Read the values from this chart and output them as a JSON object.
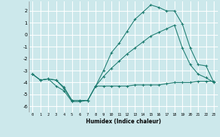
{
  "background_color": "#cce8eb",
  "grid_color": "#ffffff",
  "line_color": "#1a7a6e",
  "x_label": "Humidex (Indice chaleur)",
  "ylim": [
    -6.5,
    2.8
  ],
  "xlim": [
    -0.5,
    23.5
  ],
  "yticks": [
    2,
    1,
    0,
    -1,
    -2,
    -3,
    -4,
    -5,
    -6
  ],
  "xticks": [
    0,
    1,
    2,
    3,
    4,
    5,
    6,
    7,
    8,
    9,
    10,
    11,
    12,
    13,
    14,
    15,
    16,
    17,
    18,
    19,
    20,
    21,
    22,
    23
  ],
  "series": [
    {
      "x": [
        0,
        1,
        2,
        3,
        4,
        5,
        6,
        7,
        8,
        9,
        10,
        11,
        12,
        13,
        14,
        15,
        16,
        17,
        18,
        19,
        20,
        21,
        22,
        23
      ],
      "y": [
        -3.3,
        -3.8,
        -3.7,
        -3.8,
        -4.5,
        -5.5,
        -5.5,
        -5.5,
        -4.3,
        -3.0,
        -1.5,
        -0.7,
        0.3,
        1.3,
        1.9,
        2.5,
        2.3,
        2.0,
        2.0,
        0.9,
        -1.1,
        -2.5,
        -2.6,
        -4.0
      ]
    },
    {
      "x": [
        0,
        1,
        2,
        3,
        4,
        5,
        6,
        7,
        8,
        9,
        10,
        11,
        12,
        13,
        14,
        15,
        16,
        17,
        18,
        19,
        20,
        21,
        22,
        23
      ],
      "y": [
        -3.3,
        -3.8,
        -3.7,
        -4.3,
        -4.7,
        -5.6,
        -5.6,
        -5.5,
        -4.3,
        -4.3,
        -4.3,
        -4.3,
        -4.3,
        -4.2,
        -4.2,
        -4.2,
        -4.2,
        -4.1,
        -4.0,
        -4.0,
        -4.0,
        -3.9,
        -3.9,
        -3.9
      ]
    },
    {
      "x": [
        0,
        1,
        2,
        3,
        4,
        5,
        6,
        7,
        8,
        9,
        10,
        11,
        12,
        13,
        14,
        15,
        16,
        17,
        18,
        19,
        20,
        21,
        22,
        23
      ],
      "y": [
        -3.3,
        -3.8,
        -3.7,
        -3.8,
        -4.4,
        -5.5,
        -5.5,
        -5.5,
        -4.3,
        -3.5,
        -2.8,
        -2.2,
        -1.6,
        -1.1,
        -0.6,
        -0.1,
        0.2,
        0.5,
        0.8,
        -1.1,
        -2.5,
        -3.3,
        -3.6,
        -4.0
      ]
    }
  ]
}
